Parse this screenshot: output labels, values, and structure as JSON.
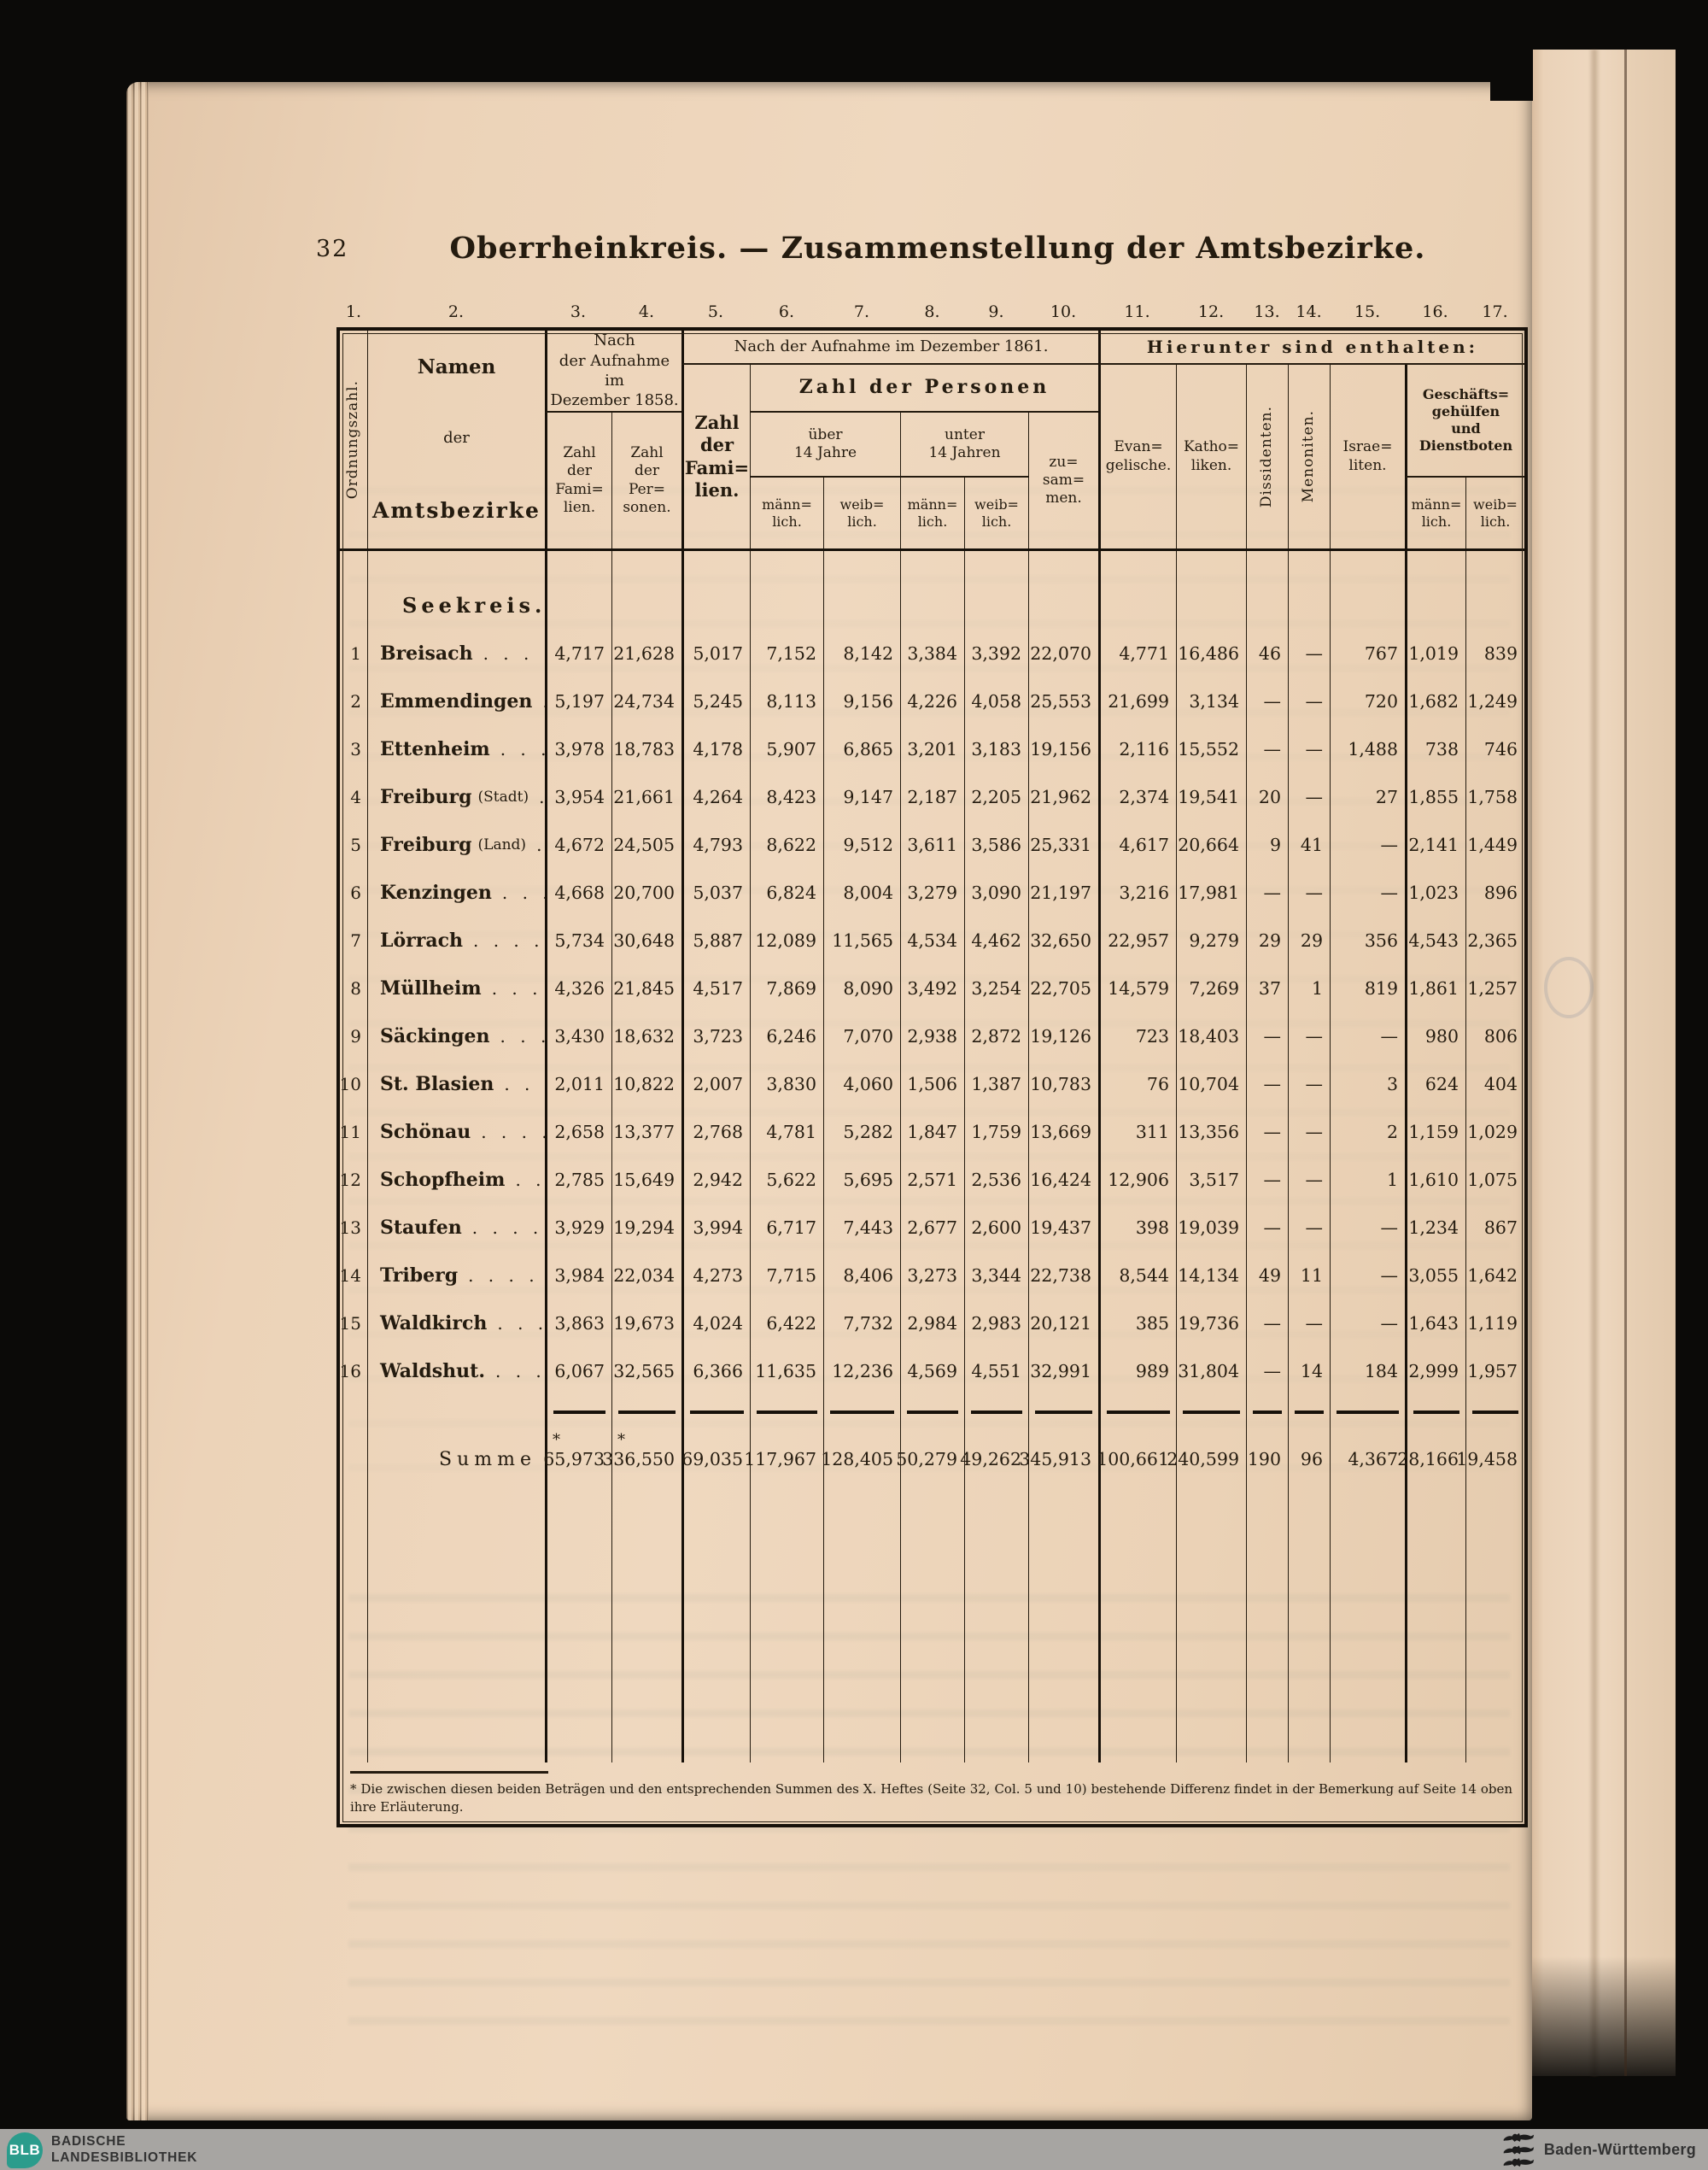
{
  "colors": {
    "page_paper": "#ecd3b8",
    "ink": "#241b0f",
    "footer_gray": "#a7a5a2",
    "blb_teal": "#2b9c8c",
    "background_black": "#0b0a08"
  },
  "page": {
    "number": "32",
    "title": "Oberrheinkreis. — Zusammenstellung der Amtsbezirke.",
    "section_heading": "Seekreis.",
    "footnote": "* Die zwischen diesen beiden Beträgen und den entsprechenden Summen des X. Heftes (Seite 32, Col. 5 und 10) bestehende Differenz findet in der Bemerkung auf Seite 14 oben ihre Erläuterung."
  },
  "table": {
    "column_numbers": [
      "1.",
      "2.",
      "3.",
      "4.",
      "5.",
      "6.",
      "7.",
      "8.",
      "9.",
      "10.",
      "11.",
      "12.",
      "13.",
      "14.",
      "15.",
      "16.",
      "17."
    ],
    "header": {
      "col1_vertical": "Ordnungszahl.",
      "col2_lines": [
        "Namen",
        "der",
        "Amtsbezirke"
      ],
      "group_1858_lines": [
        "Nach",
        "der Aufnahme im",
        "Dezember 1858."
      ],
      "col3_lines": [
        "Zahl",
        "der",
        "Fami=",
        "lien."
      ],
      "col4_lines": [
        "Zahl",
        "der",
        "Per=",
        "sonen."
      ],
      "group_1861": "Nach der Aufnahme im Dezember 1861.",
      "col5_lines": [
        "Zahl",
        "der",
        "Fami=",
        "lien."
      ],
      "group_personen": "Zahl der Personen",
      "group_ueber14_lines": [
        "über",
        "14 Jahre"
      ],
      "group_unter14_lines": [
        "unter",
        "14 Jahren"
      ],
      "col10_lines": [
        "zu=",
        "sam=",
        "men."
      ],
      "maennlich_lines": [
        "männ=",
        "lich."
      ],
      "weiblich_lines": [
        "weib=",
        "lich."
      ],
      "group_hierunter": "Hierunter sind enthalten:",
      "col11_lines": [
        "Evan=",
        "gelische."
      ],
      "col12_lines": [
        "Katho=",
        "liken."
      ],
      "col13_vertical": "Dissidenten.",
      "col14_vertical": "Menoniten.",
      "col15_lines": [
        "Israe=",
        "liten."
      ],
      "group_geschaeft_lines": [
        "Geschäfts=",
        "gehülfen",
        "und",
        "Dienstboten"
      ]
    },
    "rows": [
      {
        "num": "1",
        "name": "Breisach",
        "suffix": "",
        "leader": ". . . .",
        "values": [
          "4,717",
          "21,628",
          "5,017",
          "7,152",
          "8,142",
          "3,384",
          "3,392",
          "22,070",
          "4,771",
          "16,486",
          "46",
          "—",
          "767",
          "1,019",
          "839"
        ]
      },
      {
        "num": "2",
        "name": "Emmendingen",
        "suffix": "",
        "leader": ". .",
        "values": [
          "5,197",
          "24,734",
          "5,245",
          "8,113",
          "9,156",
          "4,226",
          "4,058",
          "25,553",
          "21,699",
          "3,134",
          "—",
          "—",
          "720",
          "1,682",
          "1,249"
        ]
      },
      {
        "num": "3",
        "name": "Ettenheim",
        "suffix": "",
        "leader": ". . .",
        "values": [
          "3,978",
          "18,783",
          "4,178",
          "5,907",
          "6,865",
          "3,201",
          "3,183",
          "19,156",
          "2,116",
          "15,552",
          "—",
          "—",
          "1,488",
          "738",
          "746"
        ]
      },
      {
        "num": "4",
        "name": "Freiburg",
        "suffix": "(Stadt)",
        "leader": ".",
        "values": [
          "3,954",
          "21,661",
          "4,264",
          "8,423",
          "9,147",
          "2,187",
          "2,205",
          "21,962",
          "2,374",
          "19,541",
          "20",
          "—",
          "27",
          "1,855",
          "1,758"
        ]
      },
      {
        "num": "5",
        "name": "Freiburg",
        "suffix": "(Land)",
        "leader": ". .",
        "values": [
          "4,672",
          "24,505",
          "4,793",
          "8,622",
          "9,512",
          "3,611",
          "3,586",
          "25,331",
          "4,617",
          "20,664",
          "9",
          "41",
          "—",
          "2,141",
          "1,449"
        ]
      },
      {
        "num": "6",
        "name": "Kenzingen",
        "suffix": "",
        "leader": ". . .",
        "values": [
          "4,668",
          "20,700",
          "5,037",
          "6,824",
          "8,004",
          "3,279",
          "3,090",
          "21,197",
          "3,216",
          "17,981",
          "—",
          "—",
          "—",
          "1,023",
          "896"
        ]
      },
      {
        "num": "7",
        "name": "Lörrach",
        "suffix": "",
        "leader": ". . . .",
        "values": [
          "5,734",
          "30,648",
          "5,887",
          "12,089",
          "11,565",
          "4,534",
          "4,462",
          "32,650",
          "22,957",
          "9,279",
          "29",
          "29",
          "356",
          "4,543",
          "2,365"
        ]
      },
      {
        "num": "8",
        "name": "Müllheim",
        "suffix": "",
        "leader": ". . .",
        "values": [
          "4,326",
          "21,845",
          "4,517",
          "7,869",
          "8,090",
          "3,492",
          "3,254",
          "22,705",
          "14,579",
          "7,269",
          "37",
          "1",
          "819",
          "1,861",
          "1,257"
        ]
      },
      {
        "num": "9",
        "name": "Säckingen",
        "suffix": "",
        "leader": ". . .",
        "values": [
          "3,430",
          "18,632",
          "3,723",
          "6,246",
          "7,070",
          "2,938",
          "2,872",
          "19,126",
          "723",
          "18,403",
          "—",
          "—",
          "—",
          "980",
          "806"
        ]
      },
      {
        "num": "10",
        "name": "St. Blasien",
        "suffix": "",
        "leader": ". . .",
        "values": [
          "2,011",
          "10,822",
          "2,007",
          "3,830",
          "4,060",
          "1,506",
          "1,387",
          "10,783",
          "76",
          "10,704",
          "—",
          "—",
          "3",
          "624",
          "404"
        ]
      },
      {
        "num": "11",
        "name": "Schönau",
        "suffix": "",
        "leader": ". . . .",
        "values": [
          "2,658",
          "13,377",
          "2,768",
          "4,781",
          "5,282",
          "1,847",
          "1,759",
          "13,669",
          "311",
          "13,356",
          "—",
          "—",
          "2",
          "1,159",
          "1,029"
        ]
      },
      {
        "num": "12",
        "name": "Schopfheim",
        "suffix": "",
        "leader": ". . .",
        "values": [
          "2,785",
          "15,649",
          "2,942",
          "5,622",
          "5,695",
          "2,571",
          "2,536",
          "16,424",
          "12,906",
          "3,517",
          "—",
          "—",
          "1",
          "1,610",
          "1,075"
        ]
      },
      {
        "num": "13",
        "name": "Staufen",
        "suffix": "",
        "leader": ". . . .",
        "values": [
          "3,929",
          "19,294",
          "3,994",
          "6,717",
          "7,443",
          "2,677",
          "2,600",
          "19,437",
          "398",
          "19,039",
          "—",
          "—",
          "—",
          "1,234",
          "867"
        ]
      },
      {
        "num": "14",
        "name": "Triberg",
        "suffix": "",
        "leader": ". . . .",
        "values": [
          "3,984",
          "22,034",
          "4,273",
          "7,715",
          "8,406",
          "3,273",
          "3,344",
          "22,738",
          "8,544",
          "14,134",
          "49",
          "11",
          "—",
          "3,055",
          "1,642"
        ]
      },
      {
        "num": "15",
        "name": "Waldkirch",
        "suffix": "",
        "leader": ". . .",
        "values": [
          "3,863",
          "19,673",
          "4,024",
          "6,422",
          "7,732",
          "2,984",
          "2,983",
          "20,121",
          "385",
          "19,736",
          "—",
          "—",
          "—",
          "1,643",
          "1,119"
        ]
      },
      {
        "num": "16",
        "name": "Waldshut.",
        "suffix": "",
        "leader": ". . .",
        "values": [
          "6,067",
          "32,565",
          "6,366",
          "11,635",
          "12,236",
          "4,569",
          "4,551",
          "32,991",
          "989",
          "31,804",
          "—",
          "14",
          "184",
          "2,999",
          "1,957"
        ]
      }
    ],
    "sum": {
      "label": "Summe",
      "starred_columns": [
        0,
        1
      ],
      "values": [
        "65,973",
        "336,550",
        "69,035",
        "117,967",
        "128,405",
        "50,279",
        "49,262",
        "345,913",
        "100,661",
        "240,599",
        "190",
        "96",
        "4,367",
        "28,166",
        "19,458"
      ]
    }
  },
  "footer": {
    "library_badge": "BLB",
    "library_label_lines": [
      "BADISCHE",
      "LANDESBIBLIOTHEK"
    ],
    "state_label": "Baden-Württemberg"
  }
}
